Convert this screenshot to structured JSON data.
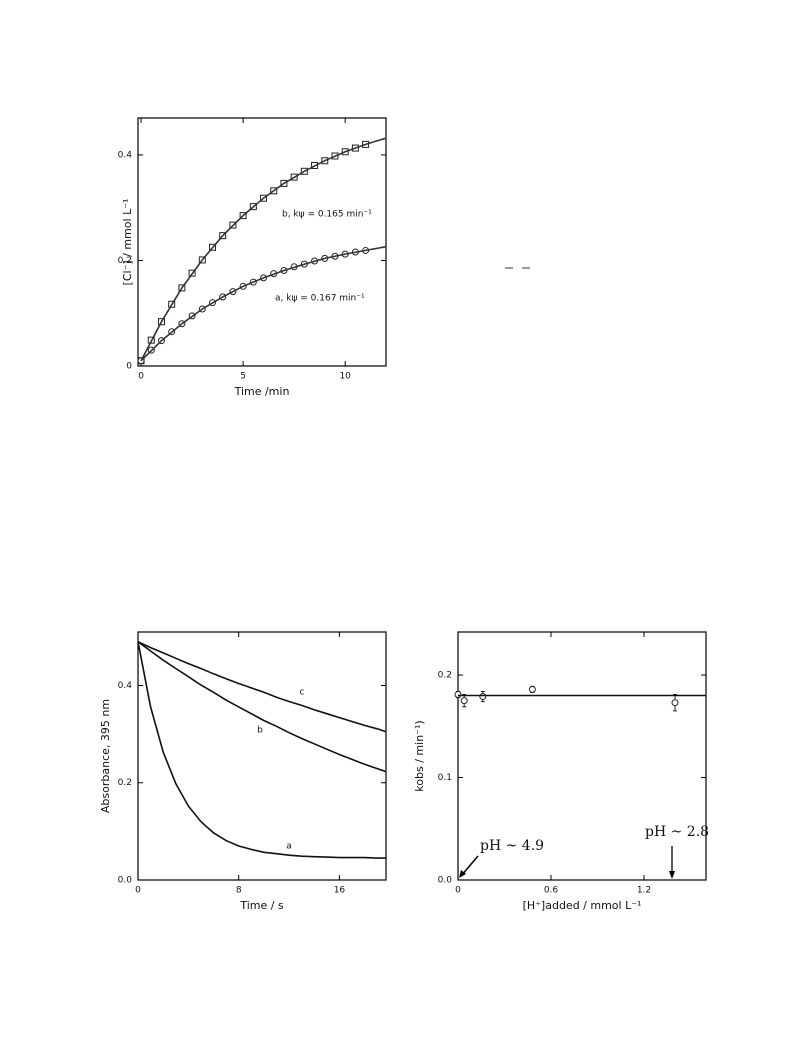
{
  "chart_data": [
    {
      "type": "scatter",
      "x_label": "Time /min",
      "y_label": "[Cl⁻] / mmol L⁻¹",
      "xlim": [
        -0.15,
        12
      ],
      "ylim": [
        0,
        0.47
      ],
      "xticks": [
        0,
        5,
        10
      ],
      "yticks": [
        0,
        0.2,
        0.4
      ],
      "annotations": [
        "b, kψ = 0.165 min⁻¹",
        "a, kψ = 0.167 min⁻¹"
      ],
      "series": [
        {
          "marker": "square",
          "color": "#222",
          "x": [
            0,
            0.5,
            1,
            1.5,
            2,
            2.5,
            3,
            3.5,
            4,
            4.5,
            5,
            5.5,
            6,
            6.5,
            7,
            7.5,
            8,
            8.5,
            9,
            9.5,
            10,
            10.5,
            11
          ],
          "values": [
            0.01,
            0.049,
            0.084,
            0.117,
            0.148,
            0.176,
            0.201,
            0.225,
            0.247,
            0.267,
            0.285,
            0.302,
            0.318,
            0.332,
            0.346,
            0.358,
            0.369,
            0.38,
            0.389,
            0.398,
            0.406,
            0.413,
            0.42
          ]
        },
        {
          "marker": "circle",
          "color": "#222",
          "x": [
            0,
            0.5,
            1,
            1.5,
            2,
            2.5,
            3,
            3.5,
            4,
            4.5,
            5,
            5.5,
            6,
            6.5,
            7,
            7.5,
            8,
            8.5,
            9,
            9.5,
            10,
            10.5,
            11
          ],
          "values": [
            0.01,
            0.03,
            0.048,
            0.065,
            0.08,
            0.095,
            0.108,
            0.12,
            0.131,
            0.141,
            0.151,
            0.159,
            0.167,
            0.175,
            0.181,
            0.188,
            0.193,
            0.199,
            0.204,
            0.208,
            0.212,
            0.216,
            0.219
          ]
        },
        {
          "marker": "line",
          "color": "#333",
          "x": [
            0,
            1,
            2,
            3,
            4,
            5,
            6,
            7,
            8,
            9,
            10,
            11,
            12
          ],
          "values": [
            0.01,
            0.084,
            0.148,
            0.201,
            0.247,
            0.285,
            0.318,
            0.346,
            0.369,
            0.389,
            0.406,
            0.42,
            0.432
          ]
        },
        {
          "marker": "line",
          "color": "#333",
          "x": [
            0,
            1,
            2,
            3,
            4,
            5,
            6,
            7,
            8,
            9,
            10,
            11,
            12
          ],
          "values": [
            0.01,
            0.048,
            0.08,
            0.108,
            0.131,
            0.151,
            0.167,
            0.181,
            0.193,
            0.204,
            0.212,
            0.219,
            0.226
          ]
        }
      ]
    },
    {
      "type": "line",
      "x_label": "Time / s",
      "y_label": "Absorbance, 395 nm",
      "xlim": [
        0,
        19.7
      ],
      "ylim": [
        0,
        0.51
      ],
      "xticks": [
        0,
        8,
        16
      ],
      "yticks": [
        {
          "value": 0,
          "label": "0.0"
        },
        0.2,
        0.4
      ],
      "series": [
        {
          "name": "a",
          "marker": "line",
          "color": "#111",
          "x": [
            0,
            1,
            2,
            3,
            4,
            5,
            6,
            7,
            8,
            9,
            10,
            11,
            12,
            13,
            14,
            15,
            16,
            17,
            18,
            19,
            19.7
          ],
          "values": [
            0.49,
            0.356,
            0.263,
            0.198,
            0.152,
            0.12,
            0.097,
            0.081,
            0.07,
            0.063,
            0.057,
            0.054,
            0.051,
            0.049,
            0.048,
            0.047,
            0.046,
            0.046,
            0.046,
            0.045,
            0.045
          ]
        },
        {
          "name": "b",
          "marker": "line",
          "color": "#111",
          "x": [
            0,
            1,
            2,
            3,
            4,
            5,
            6,
            7,
            8,
            9,
            10,
            11,
            12,
            13,
            14,
            15,
            16,
            17,
            18,
            19,
            19.7
          ],
          "values": [
            0.49,
            0.471,
            0.452,
            0.435,
            0.418,
            0.401,
            0.386,
            0.37,
            0.356,
            0.342,
            0.328,
            0.316,
            0.303,
            0.291,
            0.28,
            0.269,
            0.258,
            0.248,
            0.238,
            0.229,
            0.223
          ]
        },
        {
          "name": "c",
          "marker": "line",
          "color": "#111",
          "x": [
            0,
            1,
            2,
            3,
            4,
            5,
            6,
            7,
            8,
            9,
            10,
            11,
            12,
            13,
            14,
            15,
            16,
            17,
            18,
            19,
            19.7
          ],
          "values": [
            0.49,
            0.478,
            0.467,
            0.456,
            0.445,
            0.435,
            0.424,
            0.414,
            0.404,
            0.395,
            0.386,
            0.376,
            0.367,
            0.359,
            0.35,
            0.342,
            0.334,
            0.326,
            0.318,
            0.311,
            0.305
          ]
        }
      ]
    },
    {
      "type": "scatter",
      "x_label": "[H⁺]added / mmol L⁻¹",
      "y_label": "kobs / min⁻¹)",
      "xlim": [
        0,
        1.6
      ],
      "ylim": [
        0,
        0.242
      ],
      "xticks": [
        0,
        0.6,
        1.2
      ],
      "yticks": [
        {
          "value": 0,
          "label": "0.0"
        },
        0.1,
        0.2
      ],
      "annotations": [
        "pH ~ 4.9",
        "pH ~ 2.8"
      ],
      "series": [
        {
          "marker": "circle",
          "color": "#222",
          "x": [
            0,
            0.04,
            0.16,
            0.48,
            1.4
          ],
          "values": [
            0.181,
            0.175,
            0.179,
            0.186,
            0.173
          ],
          "errors": [
            0.003,
            0.006,
            0.005,
            0.003,
            0.008
          ]
        },
        {
          "marker": "line",
          "color": "#111",
          "x": [
            0,
            1.6
          ],
          "values": [
            0.18,
            0.18
          ]
        }
      ]
    }
  ]
}
